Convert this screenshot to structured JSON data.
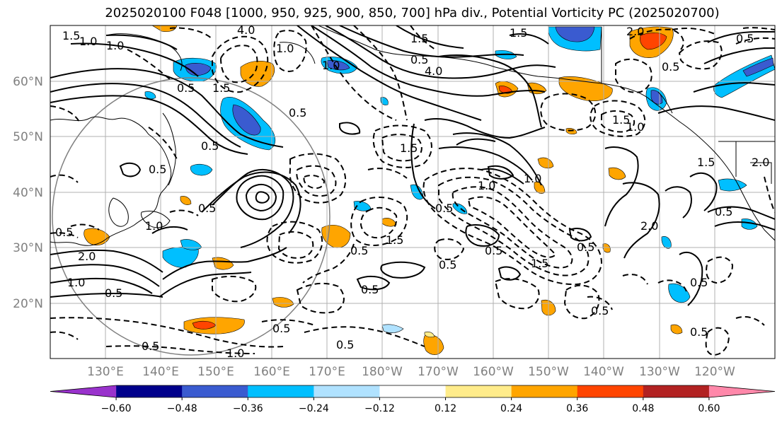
{
  "title": "2025020100 F048 [1000, 950, 925, 900, 850, 700] hPa div., Potential Vorticity PC (2025020700)",
  "lat_labels": [
    "60°N",
    "50°N",
    "40°N",
    "30°N",
    "20°N"
  ],
  "lon_labels": [
    "130°E",
    "140°E",
    "150°E",
    "160°E",
    "170°E",
    "180°W",
    "170°W",
    "160°W",
    "150°W",
    "140°W",
    "130°W",
    "120°W"
  ],
  "colorbar": {
    "colors": [
      "#9932cc",
      "#00008b",
      "#3a5bd0",
      "#00bfff",
      "#b0e2ff",
      "#ffffff",
      "#ffec8b",
      "#ffa500",
      "#ff4500",
      "#b22222",
      "#ff88aa"
    ],
    "tick_labels": [
      "-0.60",
      "-0.48",
      "-0.36",
      "-0.24",
      "-0.12",
      "0.12",
      "0.24",
      "0.36",
      "0.48",
      "0.60"
    ]
  },
  "contour_labels": [
    "1.5",
    "1.0",
    "1.0",
    "4.0",
    "1.0",
    "1.5",
    "1.5",
    "4.0",
    "1.0",
    "0.5",
    "1.5",
    "0.5",
    "0.5",
    "0.5",
    "0.5",
    "0.5",
    "1.5",
    "1.0",
    "1.5",
    "0.5",
    "0.5",
    "2.0",
    "1.0",
    "0.5",
    "2.0",
    "0.5",
    "1.5",
    "2.0",
    "1.0",
    "0.5",
    "1.0",
    "0.5",
    "0.5",
    "1.5",
    "0.5",
    "0.5",
    "1.5",
    "1.0",
    "0.5",
    "0.5",
    "0.5",
    "0.5",
    "0.5",
    "2.0",
    "0.5",
    "0.5",
    "0.5",
    "1.0"
  ]
}
